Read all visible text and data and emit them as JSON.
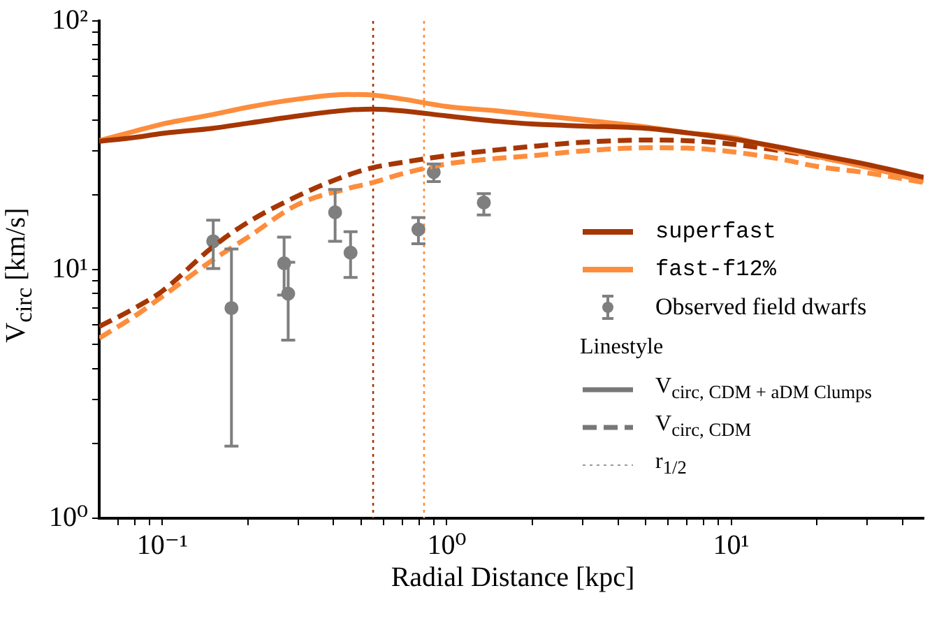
{
  "chart_data": {
    "type": "line",
    "xlabel": "Radial Distance [kpc]",
    "ylabel": "V$_{circ}$ [km/s]",
    "log": "xy",
    "xlim": [
      0.06,
      47.5
    ],
    "ylim": [
      1,
      100
    ],
    "xticks": [
      {
        "value": 0.07,
        "label": null
      },
      {
        "value": 0.08,
        "label": null
      },
      {
        "value": 0.09,
        "label": null
      },
      {
        "value": 0.1,
        "label": "10⁻¹"
      },
      {
        "value": 0.2,
        "label": null
      },
      {
        "value": 0.3,
        "label": null
      },
      {
        "value": 0.4,
        "label": null
      },
      {
        "value": 0.5,
        "label": null
      },
      {
        "value": 0.6,
        "label": null
      },
      {
        "value": 0.7,
        "label": null
      },
      {
        "value": 0.8,
        "label": null
      },
      {
        "value": 0.9,
        "label": null
      },
      {
        "value": 1,
        "label": "10⁰"
      },
      {
        "value": 2,
        "label": null
      },
      {
        "value": 3,
        "label": null
      },
      {
        "value": 4,
        "label": null
      },
      {
        "value": 5,
        "label": null
      },
      {
        "value": 6,
        "label": null
      },
      {
        "value": 7,
        "label": null
      },
      {
        "value": 8,
        "label": null
      },
      {
        "value": 9,
        "label": null
      },
      {
        "value": 10,
        "label": "10¹"
      },
      {
        "value": 20,
        "label": null
      },
      {
        "value": 30,
        "label": null
      },
      {
        "value": 40,
        "label": null
      }
    ],
    "yticks": [
      {
        "value": 1,
        "label": "10⁰"
      },
      {
        "value": 2,
        "label": null
      },
      {
        "value": 3,
        "label": null
      },
      {
        "value": 4,
        "label": null
      },
      {
        "value": 5,
        "label": null
      },
      {
        "value": 6,
        "label": null
      },
      {
        "value": 7,
        "label": null
      },
      {
        "value": 8,
        "label": null
      },
      {
        "value": 9,
        "label": null
      },
      {
        "value": 10,
        "label": "10¹"
      },
      {
        "value": 20,
        "label": null
      },
      {
        "value": 30,
        "label": null
      },
      {
        "value": 40,
        "label": null
      },
      {
        "value": 50,
        "label": null
      },
      {
        "value": 60,
        "label": null
      },
      {
        "value": 70,
        "label": null
      },
      {
        "value": 80,
        "label": null
      },
      {
        "value": 90,
        "label": null
      },
      {
        "value": 100,
        "label": "10²"
      }
    ],
    "legend": "right",
    "legend_title": "Linestyle",
    "annotations": [
      "V$_{circ, CDM + aDM Clumps}$",
      "V$_{circ, CDM}$",
      "r$_{1/2}$"
    ],
    "ref_lines": [
      {
        "axis": "x",
        "value": 0.551,
        "color": "#a63603",
        "line_style": "dotted"
      },
      {
        "axis": "x",
        "value": 0.832,
        "color": "#fd8d3c",
        "line_style": "dotted"
      }
    ],
    "series": [
      {
        "name": "superfast",
        "line_style": "solid",
        "color": "#a63603",
        "x": [
          0.06,
          0.08,
          0.1,
          0.15,
          0.2,
          0.3,
          0.45,
          0.55,
          0.7,
          1,
          1.5,
          2,
          3,
          5,
          7,
          10,
          15,
          20,
          30,
          47.5
        ],
        "values": [
          32.8,
          34,
          35.3,
          37,
          38.8,
          41.5,
          43.8,
          44.2,
          43.5,
          41.5,
          39.5,
          38.5,
          37.8,
          37,
          35.5,
          33.6,
          31,
          29,
          26.5,
          23.5
        ]
      },
      {
        "name": "fast-f12%",
        "line_style": "solid",
        "color": "#fd8d3c",
        "x": [
          0.06,
          0.08,
          0.1,
          0.15,
          0.2,
          0.3,
          0.45,
          0.55,
          0.7,
          1,
          1.5,
          2,
          3,
          5,
          7,
          10,
          15,
          20,
          30,
          47.5
        ],
        "values": [
          33,
          36,
          38.5,
          42,
          45,
          48.5,
          50.6,
          50.3,
          48.5,
          45.3,
          43.5,
          42,
          40,
          37.5,
          35.5,
          34,
          30.5,
          28.5,
          25.8,
          22.7
        ]
      },
      {
        "line_style": "dashed",
        "color": "#a63603",
        "x": [
          0.06,
          0.08,
          0.1,
          0.15,
          0.2,
          0.3,
          0.45,
          0.55,
          0.7,
          1,
          1.5,
          2,
          3,
          5,
          7,
          10,
          15,
          20,
          30,
          47.5
        ],
        "values": [
          5.9,
          7,
          8.2,
          12.3,
          15.5,
          19.8,
          24,
          25.7,
          27,
          28.7,
          30.3,
          31.3,
          32.5,
          33.2,
          33,
          32,
          30,
          28.4,
          26,
          23.2
        ]
      },
      {
        "line_style": "dashed",
        "color": "#fd8d3c",
        "x": [
          0.06,
          0.08,
          0.1,
          0.15,
          0.2,
          0.3,
          0.45,
          0.55,
          0.7,
          1,
          1.5,
          2,
          3,
          5,
          7,
          10,
          15,
          20,
          30,
          47.5
        ],
        "values": [
          5.3,
          6.5,
          7.8,
          10.9,
          13.5,
          18.3,
          21.2,
          22.4,
          24.3,
          26.6,
          28,
          28.7,
          30,
          30.9,
          30.8,
          29.8,
          27.8,
          26,
          24.5,
          22.4
        ]
      },
      {
        "name": "Observed field dwarfs",
        "type": "scatter",
        "marker": "circle",
        "color": "#7f7f7f",
        "x": [
          0.151,
          0.175,
          0.268,
          0.277,
          0.405,
          0.459,
          0.795,
          0.9,
          1.35
        ],
        "values": [
          13,
          7,
          10.6,
          8,
          17,
          11.7,
          14.5,
          24.7,
          18.6
        ],
        "errors": [
          [
            10.1,
            15.8
          ],
          [
            1.95,
            12.1
          ],
          [
            7.9,
            13.5
          ],
          [
            5.2,
            10.7
          ],
          [
            13,
            21
          ],
          [
            9.3,
            14.2
          ],
          [
            12.7,
            16.2
          ],
          [
            22.6,
            26.6
          ],
          [
            16.6,
            20.2
          ]
        ]
      }
    ]
  }
}
